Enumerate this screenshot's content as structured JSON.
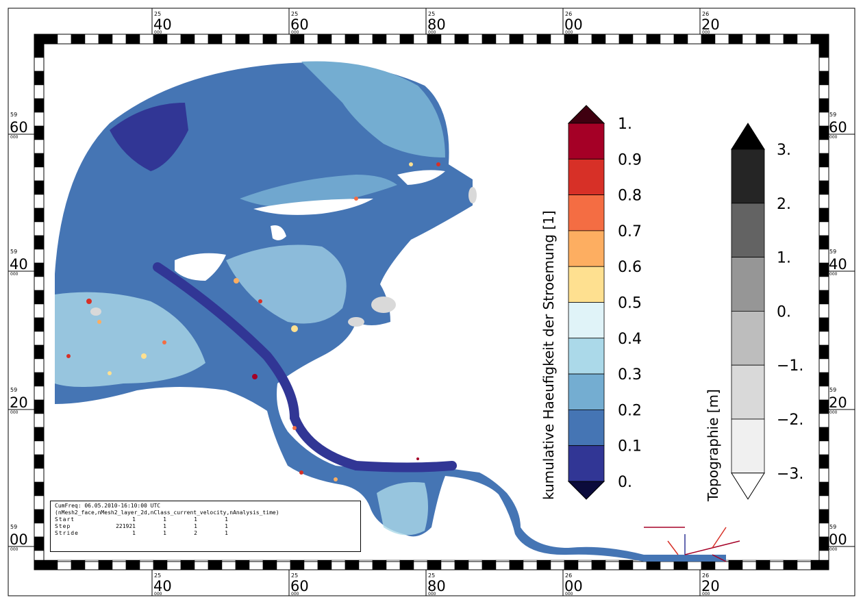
{
  "map": {
    "lon_ticks": [
      {
        "sup": "25",
        "big": "40",
        "sub": "000"
      },
      {
        "sup": "25",
        "big": "60",
        "sub": "000"
      },
      {
        "sup": "25",
        "big": "80",
        "sub": "000"
      },
      {
        "sup": "26",
        "big": "00",
        "sub": "000"
      },
      {
        "sup": "26",
        "big": "20",
        "sub": "000"
      }
    ],
    "lat_ticks": [
      {
        "sup": "59",
        "big": "60",
        "sub": "000"
      },
      {
        "sup": "59",
        "big": "40",
        "sub": "000"
      },
      {
        "sup": "59",
        "big": "20",
        "sub": "000"
      },
      {
        "sup": "59",
        "big": "00",
        "sub": "000"
      }
    ]
  },
  "colorbar_frequency": {
    "title": "kumulative Haeufigkeit der Stroemung [1]",
    "labels": [
      "1.",
      "0.9",
      "0.8",
      "0.7",
      "0.6",
      "0.5",
      "0.4",
      "0.3",
      "0.2",
      "0.1",
      "0."
    ],
    "colors": [
      "#a50026",
      "#d73027",
      "#f46d43",
      "#fdae61",
      "#fee090",
      "#e0f3f8",
      "#abd9e9",
      "#74add1",
      "#4575b4",
      "#313695"
    ],
    "over_color": "#3f0010",
    "under_color": "#0b0b3b"
  },
  "colorbar_topography": {
    "title": "Topographie [m]",
    "labels": [
      "3.",
      "2.",
      "1.",
      "0.",
      "−1.",
      "−2.",
      "−3."
    ],
    "colors": [
      "#252525",
      "#636363",
      "#969696",
      "#bdbdbd",
      "#d9d9d9",
      "#f0f0f0"
    ],
    "over_color": "#000000",
    "under_color": "#ffffff"
  },
  "info": {
    "line1": "CumFreq: 06.05.2010-16:10:00 UTC",
    "line2": "(nMesh2_face,nMesh2_layer_2d,nClass_current_velocity,nAnalysis_time)",
    "rows": [
      {
        "name": "Start",
        "v": [
          "1",
          "1",
          "1",
          "1"
        ]
      },
      {
        "name": "Step",
        "v": [
          "221921",
          "1",
          "1",
          "1"
        ]
      },
      {
        "name": "Stride",
        "v": [
          "1",
          "1",
          "2",
          "1"
        ]
      }
    ]
  }
}
